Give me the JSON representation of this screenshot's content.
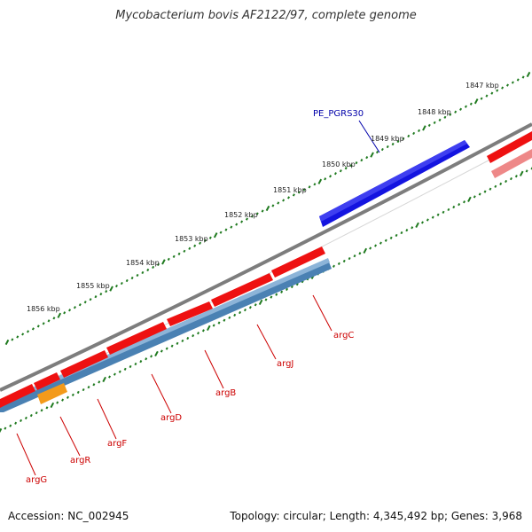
{
  "title": "Mycobacterium bovis AF2122/97, complete genome",
  "accession_label": "Accession: NC_002945",
  "summary_label": "Topology: circular; Length: 4,345,492 bp; Genes: 3,968",
  "colors": {
    "forward_gene": "#ee1111",
    "forward_gene_faded": "#ee8888",
    "selected_gene": "#1414e0",
    "reverse_strand": "#4f86b6",
    "highlight_gene": "#f39a1a",
    "backbone": "#808080",
    "tick": "#1f7a1f",
    "gene_label": "#cc0000",
    "selected_label": "#0000aa"
  },
  "scale_labels": [
    "1847 kbp",
    "1848 kbp",
    "1849 kbp",
    "1850 kbp",
    "1851 kbp",
    "1852 kbp",
    "1853 kbp",
    "1854 kbp",
    "1855 kbp",
    "1856 kbp"
  ],
  "genes": [
    {
      "name": "PE_PGRS30",
      "strand": "forward",
      "role": "selected"
    },
    {
      "name": "argC",
      "strand": "reverse"
    },
    {
      "name": "argJ",
      "strand": "reverse"
    },
    {
      "name": "argB",
      "strand": "reverse"
    },
    {
      "name": "argD",
      "strand": "reverse"
    },
    {
      "name": "argF",
      "strand": "reverse"
    },
    {
      "name": "argR",
      "strand": "reverse",
      "role": "highlight"
    },
    {
      "name": "argG",
      "strand": "reverse"
    }
  ]
}
